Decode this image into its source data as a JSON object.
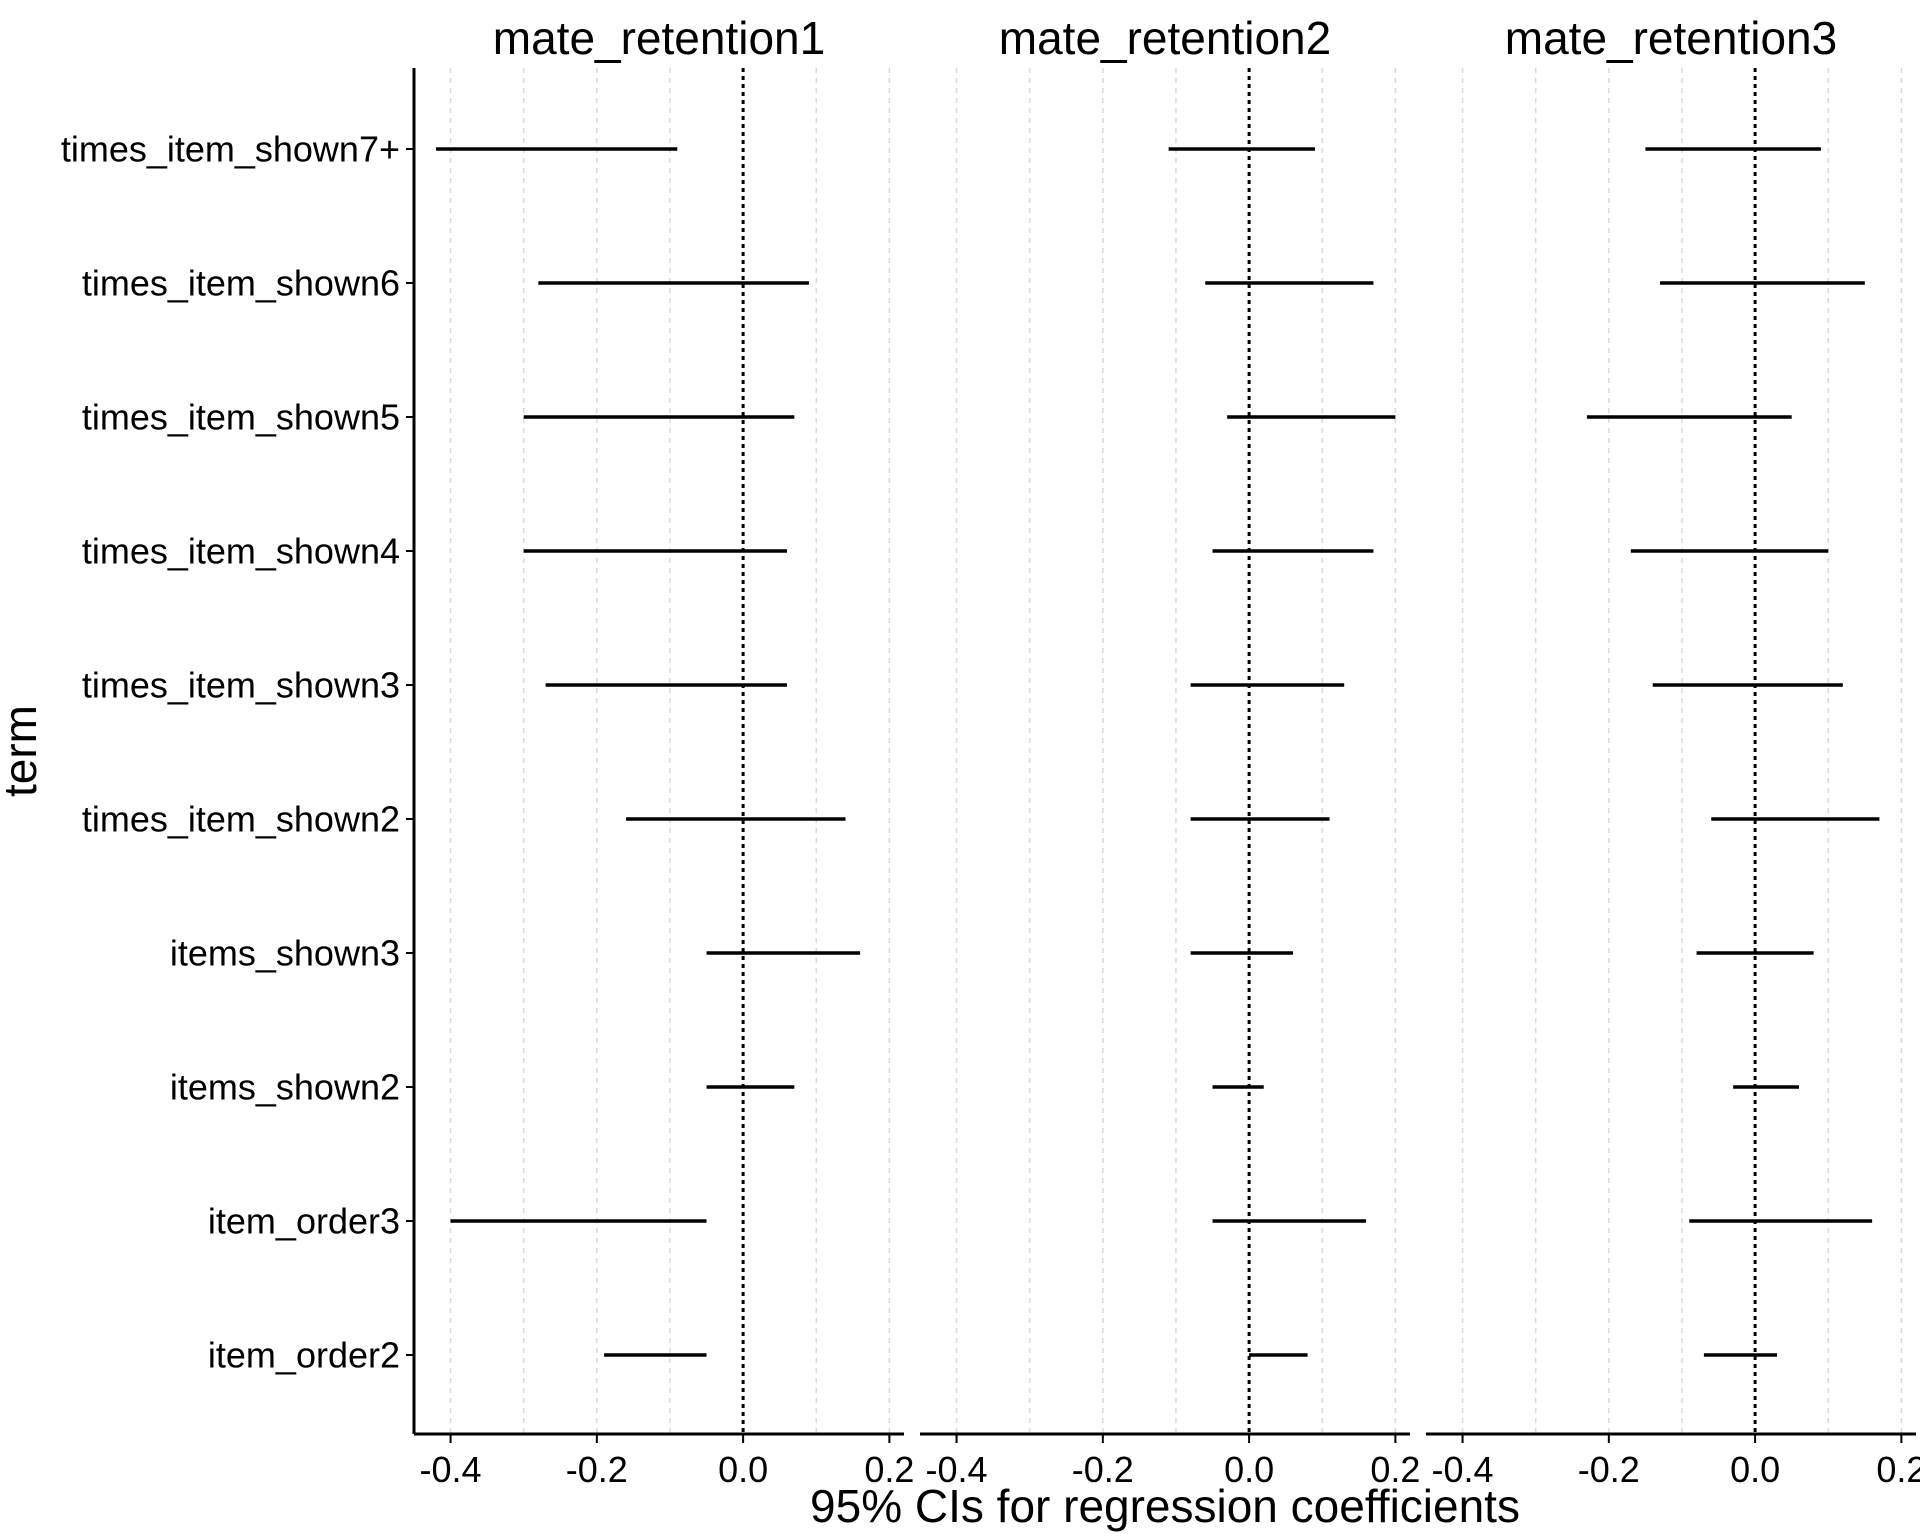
{
  "chart_data": {
    "type": "forest",
    "facets": [
      "mate_retention1",
      "mate_retention2",
      "mate_retention3"
    ],
    "terms": [
      "times_item_shown7+",
      "times_item_shown6",
      "times_item_shown5",
      "times_item_shown4",
      "times_item_shown3",
      "times_item_shown2",
      "items_shown3",
      "items_shown2",
      "item_order3",
      "item_order2"
    ],
    "intervals": [
      [
        [
          -0.42,
          -0.09
        ],
        [
          -0.28,
          0.09
        ],
        [
          -0.3,
          0.07
        ],
        [
          -0.3,
          0.06
        ],
        [
          -0.27,
          0.06
        ],
        [
          -0.16,
          0.14
        ],
        [
          -0.05,
          0.16
        ],
        [
          -0.05,
          0.07
        ],
        [
          -0.4,
          -0.05
        ],
        [
          -0.19,
          -0.05
        ]
      ],
      [
        [
          -0.11,
          0.09
        ],
        [
          -0.06,
          0.17
        ],
        [
          -0.03,
          0.2
        ],
        [
          -0.05,
          0.17
        ],
        [
          -0.08,
          0.13
        ],
        [
          -0.08,
          0.11
        ],
        [
          -0.08,
          0.06
        ],
        [
          -0.05,
          0.02
        ],
        [
          -0.05,
          0.16
        ],
        [
          0.0,
          0.08
        ]
      ],
      [
        [
          -0.15,
          0.09
        ],
        [
          -0.13,
          0.15
        ],
        [
          -0.23,
          0.05
        ],
        [
          -0.17,
          0.1
        ],
        [
          -0.14,
          0.12
        ],
        [
          -0.06,
          0.17
        ],
        [
          -0.08,
          0.08
        ],
        [
          -0.03,
          0.06
        ],
        [
          -0.09,
          0.16
        ],
        [
          -0.07,
          0.03
        ]
      ]
    ],
    "x_ticks": [
      -0.4,
      -0.2,
      0.0,
      0.2
    ],
    "x_tick_labels": [
      "-0.4",
      "-0.2",
      "0.0",
      "0.2"
    ],
    "xlim": [
      -0.45,
      0.22
    ],
    "reference_line": 0.0,
    "xlabel": "95% CIs for regression coefficients",
    "ylabel": "term",
    "grid": "vertical-dashed"
  }
}
